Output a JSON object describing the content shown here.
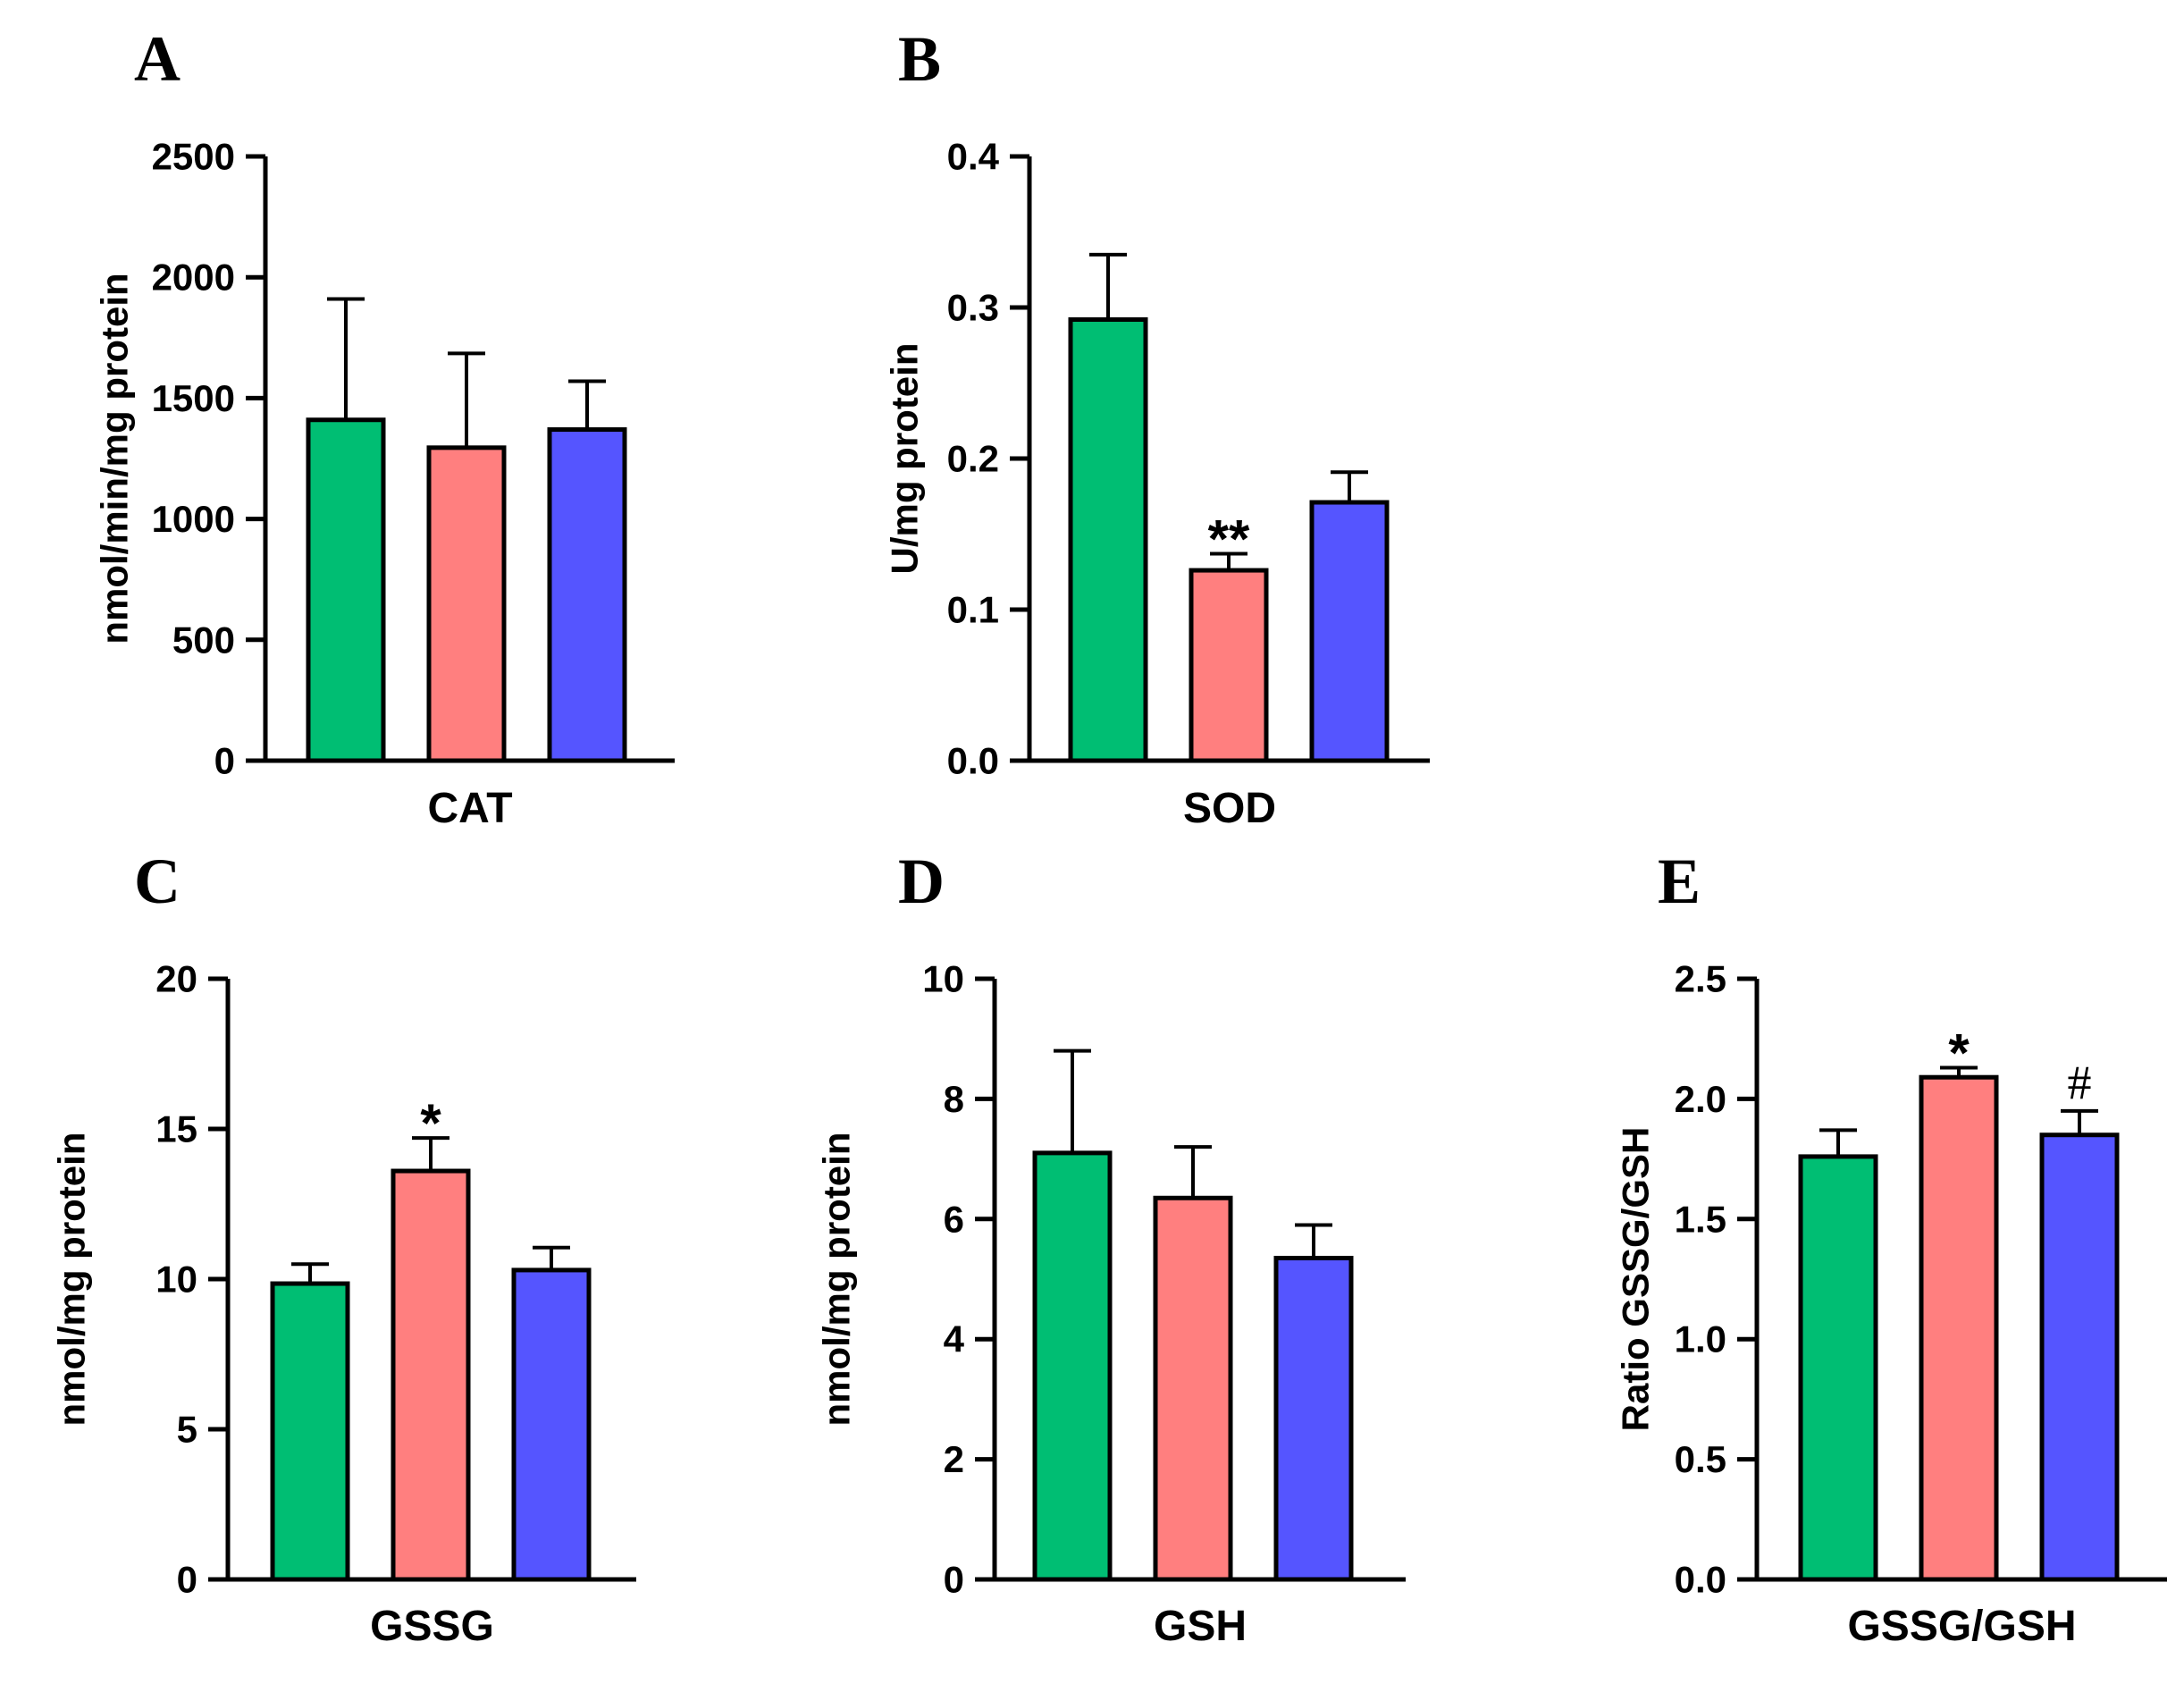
{
  "colors": {
    "group1": "#00BE73",
    "group2": "#FF7F7F",
    "group3": "#5555FF",
    "axis": "#000000"
  },
  "chart_data": [
    {
      "type": "bar",
      "panel": "A",
      "category_label": "CAT",
      "ylabel": "nmol/min/mg protein",
      "ylim": [
        0,
        2500
      ],
      "yticks": [
        0,
        500,
        1000,
        1500,
        2000,
        2500
      ],
      "ytick_labels": [
        "0",
        "500",
        "1000",
        "1500",
        "2000",
        "2500"
      ],
      "values": [
        1410,
        1295,
        1370
      ],
      "errors": [
        500,
        390,
        200
      ],
      "annotations": [
        "",
        "",
        ""
      ]
    },
    {
      "type": "bar",
      "panel": "B",
      "category_label": "SOD",
      "ylabel": "U/mg protein",
      "ylim": [
        0,
        0.4
      ],
      "yticks": [
        0,
        0.1,
        0.2,
        0.3,
        0.4
      ],
      "ytick_labels": [
        "0.0",
        "0.1",
        "0.2",
        "0.3",
        "0.4"
      ],
      "values": [
        0.292,
        0.126,
        0.171
      ],
      "errors": [
        0.043,
        0.011,
        0.02
      ],
      "annotations": [
        "",
        "**",
        ""
      ]
    },
    {
      "type": "bar",
      "panel": "C",
      "category_label": "GSSG",
      "ylabel": "nmol/mg protein",
      "ylim": [
        0,
        20
      ],
      "yticks": [
        0,
        5,
        10,
        15,
        20
      ],
      "ytick_labels": [
        "0",
        "5",
        "10",
        "15",
        "20"
      ],
      "values": [
        9.85,
        13.6,
        10.3
      ],
      "errors": [
        0.65,
        1.1,
        0.75
      ],
      "annotations": [
        "",
        "*",
        ""
      ]
    },
    {
      "type": "bar",
      "panel": "D",
      "category_label": "GSH",
      "ylabel": "nmol/mg protein",
      "ylim": [
        0,
        10
      ],
      "yticks": [
        0,
        2,
        4,
        6,
        8,
        10
      ],
      "ytick_labels": [
        "0",
        "2",
        "4",
        "6",
        "8",
        "10"
      ],
      "values": [
        7.1,
        6.35,
        5.35
      ],
      "errors": [
        1.7,
        0.85,
        0.55
      ],
      "annotations": [
        "",
        "",
        ""
      ]
    },
    {
      "type": "bar",
      "panel": "E",
      "category_label": "GSSG/GSH",
      "ylabel": "Ratio GSSG/GSH",
      "ylim": [
        0,
        2.5
      ],
      "yticks": [
        0,
        0.5,
        1.0,
        1.5,
        2.0,
        2.5
      ],
      "ytick_labels": [
        "0.0",
        "0.5",
        "1.0",
        "1.5",
        "2.0",
        "2.5"
      ],
      "values": [
        1.76,
        2.09,
        1.85
      ],
      "errors": [
        0.11,
        0.04,
        0.1
      ],
      "annotations": [
        "",
        "*",
        "#"
      ]
    }
  ]
}
